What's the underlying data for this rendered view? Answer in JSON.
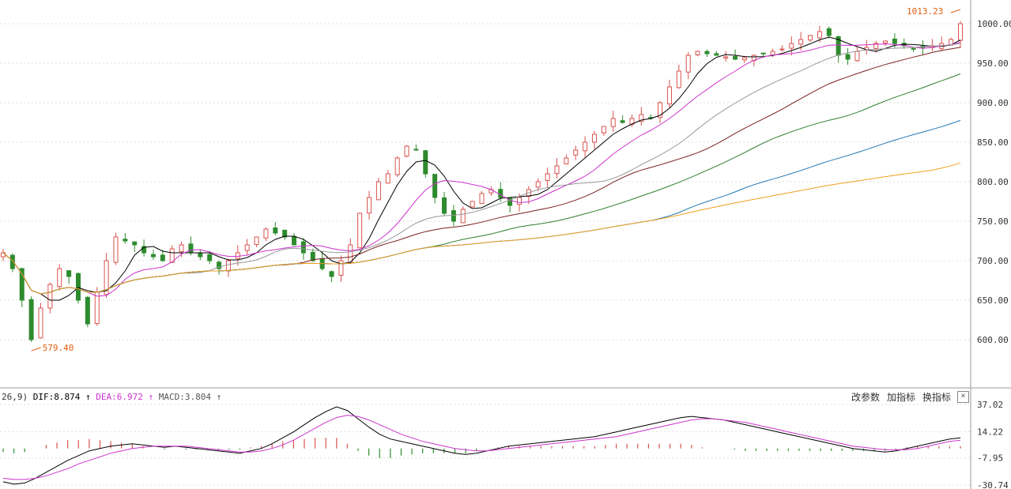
{
  "chart_data": {
    "type": "candlestick",
    "price_axis": {
      "ylim": [
        560,
        1020
      ],
      "ticks": [
        "1000.00",
        "950.00",
        "900.00",
        "850.00",
        "800.00",
        "750.00",
        "700.00",
        "650.00",
        "600.00"
      ]
    },
    "annotations": {
      "high_label": "1013.23",
      "low_label": "579.40"
    },
    "close_path": [
      710,
      690,
      650,
      600,
      640,
      670,
      690,
      680,
      650,
      620,
      660,
      700,
      730,
      725,
      720,
      710,
      705,
      700,
      715,
      720,
      710,
      705,
      700,
      690,
      700,
      710,
      720,
      730,
      740,
      735,
      730,
      720,
      710,
      700,
      690,
      680,
      700,
      720,
      760,
      780,
      800,
      810,
      830,
      845,
      840,
      810,
      780,
      760,
      750,
      765,
      775,
      785,
      790,
      780,
      770,
      780,
      790,
      800,
      810,
      820,
      830,
      840,
      850,
      860,
      870,
      880,
      875,
      880,
      885,
      880,
      900,
      920,
      940,
      960,
      965,
      962,
      960,
      958,
      955,
      957,
      960,
      962,
      965,
      968,
      975,
      980,
      985,
      990,
      985,
      960,
      955,
      965,
      970,
      975,
      978,
      975,
      972,
      968,
      970,
      972,
      975,
      980,
      1000
    ],
    "macd": {
      "label_prefix": "26,9)",
      "dif_label": "DIF:",
      "dif_value": "8.874",
      "dea_label": "DEA:",
      "dea_value": "6.972",
      "macd_label": "MACD:",
      "macd_value": "3.804",
      "ticks": [
        "37.02",
        "14.22",
        "-7.95",
        "-30.74"
      ],
      "ylim": [
        -30.74,
        37.02
      ],
      "dif": [
        -28,
        -30,
        -29,
        -25,
        -20,
        -15,
        -10,
        -6,
        -2,
        0,
        2,
        3,
        4,
        3,
        2,
        1,
        2,
        1,
        0,
        -1,
        -2,
        -3,
        -4,
        -2,
        0,
        4,
        9,
        14,
        20,
        26,
        31,
        35,
        32,
        25,
        18,
        12,
        8,
        6,
        4,
        2,
        0,
        -2,
        -4,
        -5,
        -4,
        -2,
        0,
        2,
        3,
        4,
        5,
        6,
        7,
        8,
        9,
        10,
        12,
        14,
        16,
        18,
        20,
        22,
        24,
        26,
        27,
        26,
        25,
        24,
        22,
        20,
        18,
        16,
        14,
        12,
        10,
        8,
        6,
        4,
        2,
        0,
        -1,
        -2,
        -3,
        -2,
        0,
        2,
        4,
        6,
        8,
        9
      ],
      "dea": [
        -25,
        -26,
        -26,
        -25,
        -23,
        -20,
        -17,
        -13,
        -10,
        -7,
        -4,
        -2,
        0,
        1,
        2,
        2,
        2,
        2,
        1,
        0,
        -1,
        -2,
        -3,
        -3,
        -2,
        0,
        3,
        7,
        12,
        17,
        22,
        26,
        28,
        27,
        24,
        20,
        16,
        12,
        9,
        6,
        4,
        2,
        0,
        -1,
        -2,
        -2,
        -1,
        0,
        1,
        2,
        3,
        4,
        5,
        6,
        7,
        8,
        9,
        10,
        12,
        14,
        16,
        18,
        20,
        22,
        24,
        25,
        25,
        24,
        23,
        22,
        20,
        18,
        16,
        14,
        12,
        10,
        8,
        6,
        4,
        2,
        1,
        0,
        -1,
        -1,
        -1,
        0,
        2,
        4,
        6,
        7
      ],
      "histogram": [
        -3,
        -4,
        -3,
        0,
        3,
        5,
        7,
        7,
        8,
        7,
        6,
        5,
        4,
        2,
        0,
        -1,
        0,
        -1,
        -1,
        -1,
        -1,
        -1,
        -1,
        1,
        2,
        4,
        6,
        7,
        8,
        9,
        9,
        9,
        4,
        -2,
        -6,
        -8,
        -8,
        -6,
        -5,
        -4,
        -4,
        -4,
        -4,
        -4,
        -2,
        0,
        1,
        2,
        2,
        2,
        2,
        2,
        2,
        2,
        2,
        2,
        3,
        4,
        4,
        4,
        4,
        4,
        4,
        4,
        3,
        1,
        0,
        0,
        -1,
        -2,
        -2,
        -2,
        -2,
        -2,
        -2,
        -2,
        -2,
        -2,
        -2,
        -2,
        -2,
        -2,
        -2,
        -1,
        1,
        2,
        2,
        2,
        2,
        2
      ]
    }
  },
  "toolbar": {
    "params_label": "改参数",
    "add_indicator_label": "加指标",
    "switch_indicator_label": "换指标",
    "close_label": "×"
  },
  "colors": {
    "up": "#d9534f",
    "down": "#2e8b2e",
    "ma5": "#000000",
    "ma10": "#cc33cc",
    "ma20": "#999999",
    "ma30": "#7b1f1f",
    "ma60": "#2e7d2e",
    "ma120": "#1f77b4",
    "ma250": "#f0a020",
    "dif": "#000000",
    "dea": "#cc33cc",
    "annotation": "#e06010"
  }
}
